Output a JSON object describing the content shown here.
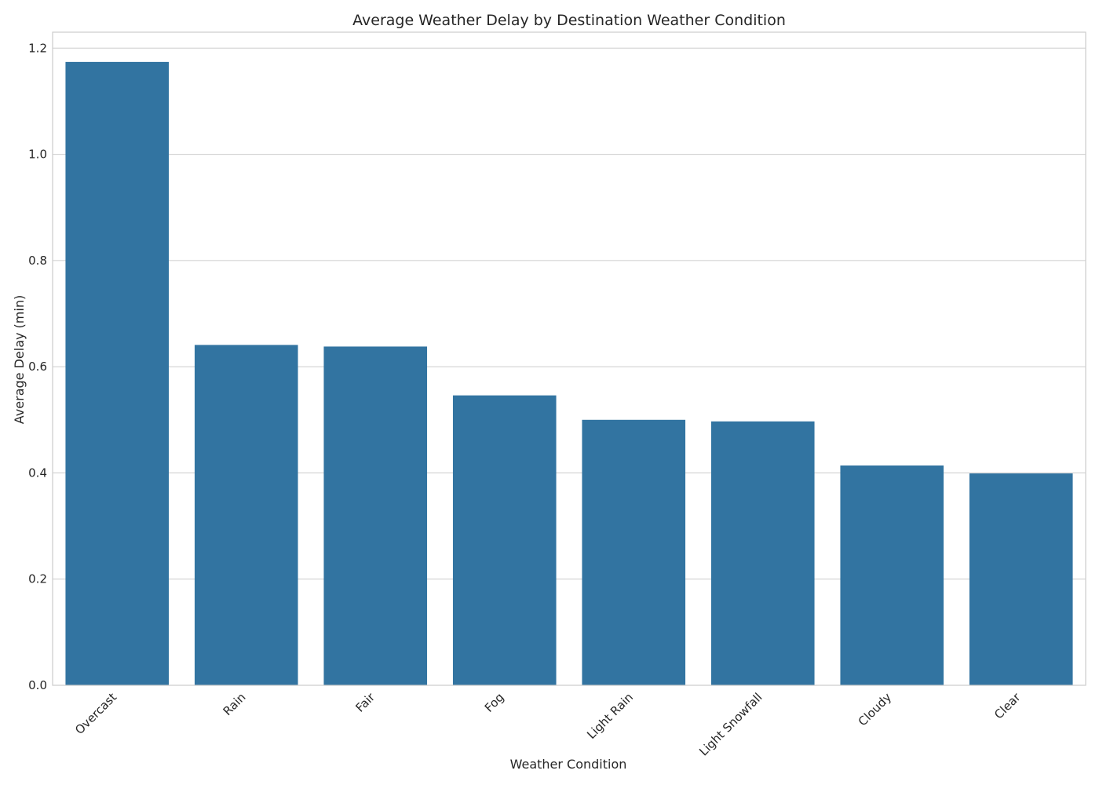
{
  "chart_data": {
    "type": "bar",
    "title": "Average Weather Delay by Destination Weather Condition",
    "xlabel": "Weather Condition",
    "ylabel": "Average Delay (min)",
    "categories": [
      "Overcast",
      "Rain",
      "Fair",
      "Fog",
      "Light Rain",
      "Light Snowfall",
      "Cloudy",
      "Clear"
    ],
    "values": [
      1.174,
      0.641,
      0.638,
      0.546,
      0.5,
      0.497,
      0.414,
      0.399
    ],
    "ylim": [
      0,
      1.23
    ],
    "yticks": [
      "0.0",
      "0.2",
      "0.4",
      "0.6",
      "0.8",
      "1.0",
      "1.2"
    ],
    "grid": true,
    "bar_color": "#3274a1",
    "grid_color": "#cccccc"
  }
}
